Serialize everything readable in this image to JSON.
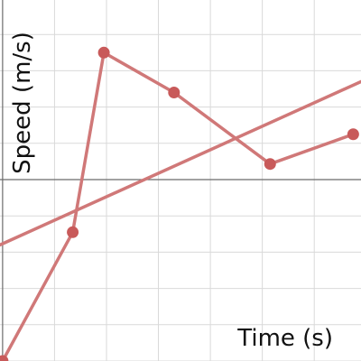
{
  "chart_data": {
    "type": "line",
    "xlabel": "Time (s)",
    "ylabel": "Speed (m/s)",
    "xlim": [
      -0.05,
      6.9
    ],
    "ylim": [
      -5,
      4.95
    ],
    "x_grid_step": 1,
    "y_grid_step": 1,
    "grid": true,
    "tick_labels_shown": false,
    "series": [
      {
        "values": [
          {
            "x": 0.0,
            "y": -5.0
          },
          {
            "x": 1.35,
            "y": -1.45
          },
          {
            "x": 1.95,
            "y": 3.5
          },
          {
            "x": 3.3,
            "y": 2.4
          },
          {
            "x": 5.15,
            "y": 0.43
          },
          {
            "x": 6.75,
            "y": 1.25
          }
        ]
      }
    ],
    "trend_line": {
      "x": [
        -0.05,
        6.9
      ],
      "y": [
        -1.8,
        2.7
      ]
    },
    "colors": {
      "series": "#d07878",
      "points": "#c85a5a",
      "grid": "#d9d9d9",
      "axis": "#6b6b6b"
    }
  }
}
